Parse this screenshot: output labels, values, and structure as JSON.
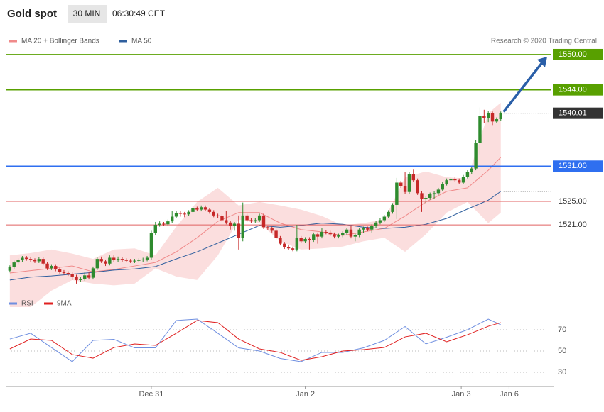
{
  "header": {
    "title": "Gold spot",
    "interval": "30 MIN",
    "time": "06:30:49 CET"
  },
  "chart_data": [
    {
      "type": "candlestick",
      "legend": [
        {
          "name": "MA 20 + Bollinger Bands",
          "color": "#f08a8a"
        },
        {
          "name": "MA 50",
          "color": "#2f5f9e"
        }
      ],
      "copyright": "Research © 2020 Trading Central",
      "ylim": [
        1506,
        1552
      ],
      "xlim": [
        -1,
        130
      ],
      "up_color": "#2e8b2e",
      "down_color": "#c62828",
      "xticks": [
        {
          "value": 34,
          "label": "Dec 31"
        },
        {
          "value": 71,
          "label": "Jan 2"
        },
        {
          "value": 108.5,
          "label": "Jan 3"
        },
        {
          "value": 120,
          "label": "Jan 6"
        }
      ],
      "levels": [
        {
          "value": 1550,
          "label": "1550.00",
          "color": "#58a000",
          "style": "box"
        },
        {
          "value": 1544,
          "label": "1544.00",
          "color": "#58a000",
          "style": "box"
        },
        {
          "value": 1540.01,
          "label": "1540.01",
          "color": "#333333",
          "style": "last"
        },
        {
          "value": 1531,
          "label": "1531.00",
          "color": "#2f6ff0",
          "style": "box"
        },
        {
          "value": 1525,
          "label": "1525.00",
          "color": "#e06060",
          "style": "text"
        },
        {
          "value": 1521,
          "label": "1521.00",
          "color": "#e06060",
          "style": "text"
        }
      ],
      "ohlc": [
        [
          1513.2,
          1514.1,
          1512.9,
          1513.8
        ],
        [
          1513.8,
          1514.9,
          1513.5,
          1514.6
        ],
        [
          1514.6,
          1515.3,
          1514.3,
          1515.0
        ],
        [
          1515.0,
          1515.7,
          1514.7,
          1515.4
        ],
        [
          1515.4,
          1515.7,
          1514.9,
          1515.2
        ],
        [
          1515.2,
          1515.5,
          1514.7,
          1515.0
        ],
        [
          1515.0,
          1515.3,
          1514.5,
          1514.8
        ],
        [
          1514.8,
          1515.5,
          1514.5,
          1515.2
        ],
        [
          1515.2,
          1515.5,
          1514.1,
          1514.4
        ],
        [
          1514.4,
          1514.7,
          1513.3,
          1513.6
        ],
        [
          1513.6,
          1514.3,
          1513.3,
          1514.0
        ],
        [
          1514.0,
          1514.3,
          1513.1,
          1513.4
        ],
        [
          1513.4,
          1513.7,
          1512.7,
          1513.0
        ],
        [
          1513.0,
          1513.3,
          1512.5,
          1512.8
        ],
        [
          1512.8,
          1513.1,
          1512.3,
          1512.6
        ],
        [
          1512.6,
          1512.9,
          1511.6,
          1512.2
        ],
        [
          1512.2,
          1512.5,
          1511.0,
          1511.6
        ],
        [
          1511.6,
          1512.1,
          1511.3,
          1511.8
        ],
        [
          1511.8,
          1512.9,
          1511.5,
          1512.4
        ],
        [
          1512.4,
          1512.9,
          1511.7,
          1512.0
        ],
        [
          1512.0,
          1513.9,
          1511.7,
          1513.6
        ],
        [
          1513.6,
          1515.5,
          1513.3,
          1515.2
        ],
        [
          1515.2,
          1515.6,
          1514.5,
          1514.8
        ],
        [
          1514.8,
          1515.1,
          1514.0,
          1514.4
        ],
        [
          1514.4,
          1515.8,
          1514.1,
          1515.4
        ],
        [
          1515.4,
          1515.8,
          1514.7,
          1515.0
        ],
        [
          1515.0,
          1515.6,
          1514.7,
          1515.2
        ],
        [
          1515.2,
          1515.5,
          1514.7,
          1515.0
        ],
        [
          1515.0,
          1515.3,
          1514.6,
          1514.9
        ],
        [
          1514.9,
          1515.2,
          1514.5,
          1514.8
        ],
        [
          1514.8,
          1515.2,
          1514.5,
          1514.9
        ],
        [
          1514.9,
          1515.3,
          1514.6,
          1515.0
        ],
        [
          1515.0,
          1515.4,
          1514.7,
          1515.1
        ],
        [
          1515.1,
          1515.7,
          1514.8,
          1515.4
        ],
        [
          1515.4,
          1520.0,
          1515.1,
          1519.6
        ],
        [
          1519.6,
          1521.5,
          1519.3,
          1521.0
        ],
        [
          1521.0,
          1521.6,
          1520.7,
          1521.2
        ],
        [
          1521.2,
          1521.5,
          1520.8,
          1521.1
        ],
        [
          1521.1,
          1521.9,
          1520.8,
          1521.6
        ],
        [
          1521.6,
          1523.4,
          1521.3,
          1522.4
        ],
        [
          1522.4,
          1523.3,
          1522.1,
          1523.0
        ],
        [
          1523.0,
          1523.3,
          1522.4,
          1522.9
        ],
        [
          1522.9,
          1523.2,
          1522.3,
          1522.8
        ],
        [
          1522.8,
          1523.5,
          1522.5,
          1523.2
        ],
        [
          1523.2,
          1524.3,
          1522.9,
          1523.8
        ],
        [
          1523.8,
          1524.1,
          1523.3,
          1523.6
        ],
        [
          1523.6,
          1524.3,
          1523.3,
          1524.0
        ],
        [
          1524.0,
          1524.3,
          1523.3,
          1523.6
        ],
        [
          1523.6,
          1523.9,
          1522.9,
          1523.2
        ],
        [
          1523.2,
          1523.5,
          1522.3,
          1522.6
        ],
        [
          1522.6,
          1522.9,
          1522.2,
          1522.5
        ],
        [
          1522.5,
          1522.8,
          1521.5,
          1521.8
        ],
        [
          1521.8,
          1523.4,
          1521.1,
          1521.4
        ],
        [
          1521.4,
          1521.7,
          1520.2,
          1520.8
        ],
        [
          1520.8,
          1521.5,
          1520.0,
          1521.2
        ],
        [
          1521.2,
          1522.6,
          1516.8,
          1518.8
        ],
        [
          1518.8,
          1524.8,
          1518.2,
          1522.6
        ],
        [
          1522.6,
          1522.9,
          1521.5,
          1521.8
        ],
        [
          1521.8,
          1522.1,
          1521.3,
          1521.6
        ],
        [
          1521.6,
          1522.1,
          1521.3,
          1521.8
        ],
        [
          1521.8,
          1522.9,
          1521.5,
          1522.6
        ],
        [
          1522.6,
          1522.9,
          1520.3,
          1520.6
        ],
        [
          1520.6,
          1520.9,
          1520.1,
          1520.4
        ],
        [
          1520.4,
          1520.7,
          1519.7,
          1520.0
        ],
        [
          1520.0,
          1520.3,
          1518.5,
          1518.8
        ],
        [
          1518.8,
          1519.1,
          1517.5,
          1517.8
        ],
        [
          1517.8,
          1518.1,
          1516.9,
          1517.2
        ],
        [
          1517.2,
          1517.5,
          1516.7,
          1517.0
        ],
        [
          1517.0,
          1517.3,
          1516.5,
          1516.8
        ],
        [
          1516.8,
          1521.0,
          1516.5,
          1518.8
        ],
        [
          1518.8,
          1519.1,
          1517.9,
          1518.2
        ],
        [
          1518.2,
          1518.9,
          1517.9,
          1518.6
        ],
        [
          1518.6,
          1518.9,
          1516.8,
          1518.4
        ],
        [
          1518.4,
          1519.7,
          1518.1,
          1519.4
        ],
        [
          1519.4,
          1519.7,
          1517.8,
          1519.0
        ],
        [
          1519.0,
          1520.5,
          1518.7,
          1519.8
        ],
        [
          1519.8,
          1520.1,
          1519.4,
          1519.7
        ],
        [
          1519.7,
          1520.0,
          1519.1,
          1519.4
        ],
        [
          1519.4,
          1519.7,
          1518.7,
          1519.0
        ],
        [
          1519.0,
          1519.5,
          1518.7,
          1519.2
        ],
        [
          1519.2,
          1519.9,
          1518.9,
          1519.6
        ],
        [
          1519.6,
          1520.5,
          1519.3,
          1520.2
        ],
        [
          1520.2,
          1520.9,
          1518.7,
          1519.0
        ],
        [
          1519.0,
          1519.5,
          1518.2,
          1519.2
        ],
        [
          1519.2,
          1520.5,
          1518.9,
          1520.2
        ],
        [
          1520.2,
          1520.7,
          1519.6,
          1520.4
        ],
        [
          1520.4,
          1520.7,
          1519.9,
          1520.2
        ],
        [
          1520.2,
          1521.1,
          1519.7,
          1520.8
        ],
        [
          1520.8,
          1521.7,
          1520.5,
          1521.4
        ],
        [
          1521.4,
          1522.1,
          1521.1,
          1521.8
        ],
        [
          1521.8,
          1522.7,
          1521.5,
          1522.4
        ],
        [
          1522.4,
          1523.5,
          1522.1,
          1523.2
        ],
        [
          1523.2,
          1524.7,
          1522.9,
          1524.4
        ],
        [
          1524.4,
          1529.0,
          1522.0,
          1528.2
        ],
        [
          1528.2,
          1528.5,
          1527.3,
          1527.6
        ],
        [
          1527.6,
          1530.0,
          1526.3,
          1526.6
        ],
        [
          1526.6,
          1530.0,
          1526.3,
          1529.6
        ],
        [
          1529.6,
          1530.4,
          1528.3,
          1528.6
        ],
        [
          1528.6,
          1528.9,
          1526.1,
          1526.4
        ],
        [
          1526.4,
          1526.7,
          1523.2,
          1525.4
        ],
        [
          1525.4,
          1525.9,
          1524.6,
          1525.6
        ],
        [
          1525.6,
          1526.5,
          1525.3,
          1526.2
        ],
        [
          1526.2,
          1526.7,
          1525.4,
          1526.4
        ],
        [
          1526.4,
          1527.3,
          1526.1,
          1527.0
        ],
        [
          1527.0,
          1528.3,
          1526.7,
          1528.0
        ],
        [
          1528.0,
          1528.9,
          1527.7,
          1528.6
        ],
        [
          1528.6,
          1529.1,
          1528.3,
          1528.8
        ],
        [
          1528.8,
          1529.1,
          1528.3,
          1528.6
        ],
        [
          1528.6,
          1528.9,
          1527.9,
          1528.2
        ],
        [
          1528.2,
          1529.5,
          1527.9,
          1529.2
        ],
        [
          1529.2,
          1530.3,
          1528.9,
          1530.0
        ],
        [
          1530.0,
          1530.9,
          1529.7,
          1530.6
        ],
        [
          1530.6,
          1535.5,
          1530.3,
          1535.0
        ],
        [
          1535.0,
          1541.0,
          1533.0,
          1539.6
        ],
        [
          1539.6,
          1540.6,
          1538.3,
          1539.2
        ],
        [
          1539.2,
          1540.4,
          1538.5,
          1540.0
        ],
        [
          1540.0,
          1540.3,
          1538.0,
          1538.6
        ],
        [
          1538.6,
          1539.3,
          1538.3,
          1539.0
        ],
        [
          1539.0,
          1540.3,
          1538.7,
          1540.01
        ]
      ],
      "indicators": {
        "x": [
          0,
          5,
          10,
          15,
          20,
          25,
          30,
          35,
          40,
          45,
          50,
          55,
          60,
          65,
          70,
          75,
          80,
          85,
          90,
          95,
          100,
          105,
          110,
          115,
          118
        ],
        "upper": [
          1515.8,
          1516.2,
          1516.8,
          1516.1,
          1515.2,
          1516.8,
          1517.0,
          1515.8,
          1520.7,
          1524.9,
          1527.3,
          1524.3,
          1524.9,
          1524.3,
          1523.6,
          1522.5,
          1520.9,
          1521.3,
          1521.9,
          1529.1,
          1530.1,
          1529.1,
          1528.9,
          1540.0,
          1541.8
        ],
        "lower": [
          1507.0,
          1507.0,
          1509.8,
          1511.6,
          1511.0,
          1510.7,
          1511.0,
          1513.6,
          1512.2,
          1511.6,
          1515.8,
          1521.9,
          1521.3,
          1518.2,
          1516.8,
          1517.0,
          1517.3,
          1518.2,
          1518.8,
          1516.4,
          1519.4,
          1523.1,
          1524.9,
          1521.3,
          1523.1
        ],
        "ma20": [
          1512.8,
          1513.2,
          1513.6,
          1514.0,
          1513.0,
          1513.4,
          1514.0,
          1514.6,
          1516.4,
          1518.8,
          1521.6,
          1523.1,
          1523.1,
          1521.3,
          1520.2,
          1519.8,
          1519.2,
          1519.8,
          1520.4,
          1522.5,
          1524.9,
          1526.7,
          1527.3,
          1530.3,
          1532.5
        ],
        "ma50": [
          1511.6,
          1512.1,
          1512.3,
          1512.6,
          1512.9,
          1513.3,
          1513.5,
          1513.9,
          1515.2,
          1516.4,
          1517.9,
          1519.4,
          1520.9,
          1520.6,
          1520.9,
          1521.3,
          1521.1,
          1520.6,
          1520.4,
          1520.6,
          1521.1,
          1522.1,
          1523.7,
          1525.2,
          1526.7
        ]
      }
    },
    {
      "type": "line",
      "ylim": [
        20,
        100
      ],
      "xlim": [
        -1,
        130
      ],
      "yticks": [
        30,
        50,
        70
      ],
      "x": [
        0,
        5,
        10,
        15,
        20,
        25,
        30,
        35,
        40,
        45,
        50,
        55,
        60,
        65,
        70,
        75,
        80,
        85,
        90,
        95,
        100,
        105,
        110,
        115,
        118
      ],
      "series": [
        {
          "name": "RSI",
          "color": "#6f8fe0",
          "values": [
            61.3,
            66.7,
            53.3,
            40,
            60,
            61,
            53,
            53,
            78.7,
            80,
            66.7,
            53,
            50,
            43,
            40,
            48.7,
            48.7,
            53,
            60,
            73,
            56.7,
            63,
            70,
            80,
            74.7
          ]
        },
        {
          "name": "9MA",
          "color": "#e02020",
          "values": [
            52,
            61.3,
            60,
            46.7,
            43.3,
            53.3,
            56.7,
            55.3,
            66.7,
            78.7,
            76.7,
            61.3,
            52,
            48.7,
            41.3,
            44.7,
            50,
            51.3,
            53.3,
            63.3,
            66.7,
            58.7,
            65.3,
            73.3,
            76.7
          ]
        }
      ]
    }
  ]
}
